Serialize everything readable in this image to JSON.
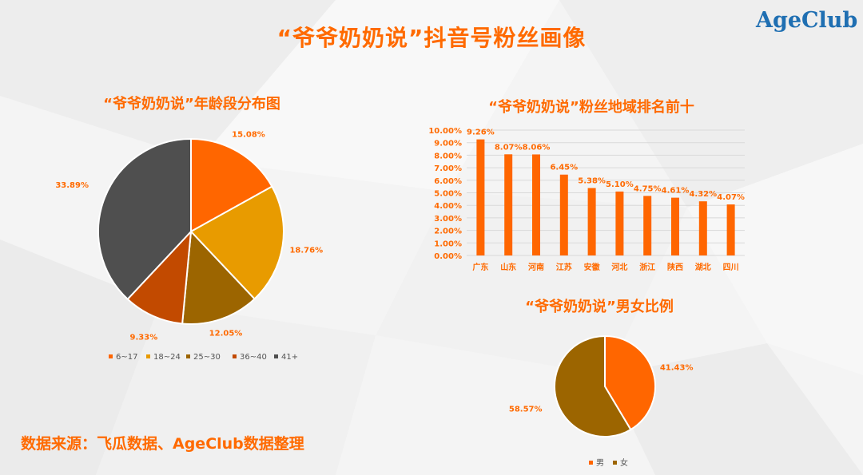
{
  "page": {
    "title": "“爷爷奶奶说”抖音号粉丝画像",
    "logo_age": "Age",
    "logo_club": "Club",
    "source": "数据来源：飞瓜数据、AgeClub数据整理"
  },
  "colors": {
    "accent": "#ff6a00",
    "pie1": "#ff6600",
    "pie2": "#e89b00",
    "pie3": "#9c6500",
    "pie4": "#c24a00",
    "pie5": "#4f4f4f",
    "male": "#ff6600",
    "female": "#9c6500",
    "bar": "#ff6600"
  },
  "chart_data": [
    {
      "type": "pie",
      "title": "“爷爷奶奶说”年龄段分布图",
      "categories": [
        "6~17",
        "18~24",
        "25~30",
        "36~40",
        "41+"
      ],
      "values": [
        15.08,
        18.76,
        12.05,
        9.33,
        33.89
      ],
      "labels": [
        "15.08%",
        "18.76%",
        "12.05%",
        "9.33%",
        "33.89%"
      ],
      "legend": "bottom"
    },
    {
      "type": "bar",
      "title": "“爷爷奶奶说”粉丝地域排名前十",
      "categories": [
        "广东",
        "山东",
        "河南",
        "江苏",
        "安徽",
        "河北",
        "浙江",
        "陕西",
        "湖北",
        "四川"
      ],
      "values": [
        9.26,
        8.07,
        8.06,
        6.45,
        5.38,
        5.1,
        4.75,
        4.61,
        4.32,
        4.07
      ],
      "labels": [
        "9.26%",
        "8.07%",
        "8.06%",
        "6.45%",
        "5.38%",
        "5.10%",
        "4.75%",
        "4.61%",
        "4.32%",
        "4.07%"
      ],
      "ylim": [
        0,
        10
      ],
      "yticks": [
        "0.00%",
        "1.00%",
        "2.00%",
        "3.00%",
        "4.00%",
        "5.00%",
        "6.00%",
        "7.00%",
        "8.00%",
        "9.00%",
        "10.00%"
      ],
      "grid": true
    },
    {
      "type": "pie",
      "title": "“爷爷奶奶说”男女比例",
      "categories": [
        "男",
        "女"
      ],
      "values": [
        41.43,
        58.57
      ],
      "labels": [
        "41.43%",
        "58.57%"
      ],
      "legend": "bottom"
    }
  ]
}
